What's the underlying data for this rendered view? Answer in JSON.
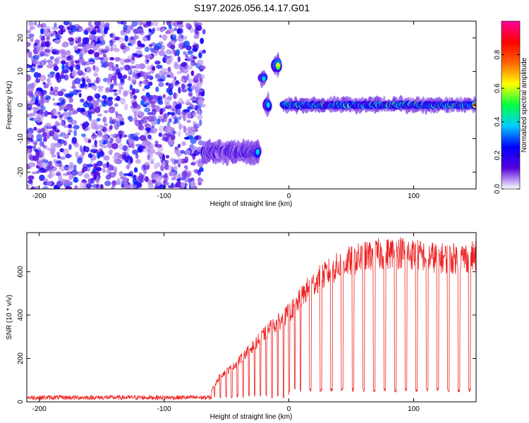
{
  "title": "S197.2026.056.14.17.G01",
  "chart_data": [
    {
      "type": "heatmap",
      "name": "spectrogram",
      "xlabel": "Height of straight line (km)",
      "ylabel": "Frequency (Hz)",
      "xlim": [
        -210,
        150
      ],
      "ylim": [
        -25,
        25
      ],
      "xticks": [
        -200,
        -100,
        0,
        100
      ],
      "yticks": [
        -20,
        -10,
        0,
        10,
        20
      ],
      "colorbar": {
        "label": "Normalized spectral amplitude",
        "range": [
          0,
          1
        ],
        "ticks": [
          "0.0",
          "0.2",
          "0.4",
          "0.6",
          "0.8"
        ],
        "colors": [
          "#ffffff",
          "#5500dd",
          "#0000ff",
          "#00ccff",
          "#00ff44",
          "#ffff00",
          "#ff6600",
          "#ff0000",
          "#ff0099"
        ]
      },
      "noise_region": {
        "x": [
          -210,
          -68
        ],
        "y": [
          -25,
          25
        ],
        "amplitude": [
          0.05,
          0.3
        ]
      },
      "features": [
        {
          "x": [
            -68,
            -25
          ],
          "freq": -14,
          "spread": 3,
          "amplitude": 0.4
        },
        {
          "x": [
            -22,
            -20
          ],
          "freq": 8,
          "spread": 2,
          "amplitude": 0.6
        },
        {
          "x": [
            -18,
            -16
          ],
          "freq": 0,
          "spread": 3,
          "amplitude": 0.6
        },
        {
          "x": [
            -12,
            -8
          ],
          "freq": 12,
          "spread": 3,
          "amplitude": 0.7
        },
        {
          "x": [
            -5,
            150
          ],
          "freq": 0,
          "spread": 1.5,
          "amplitude": 0.9
        }
      ]
    },
    {
      "type": "line",
      "name": "snr",
      "xlabel": "Height of straight line (km)",
      "ylabel": "SNR (10 * v/v)",
      "xlim": [
        -210,
        150
      ],
      "ylim": [
        0,
        780
      ],
      "xticks": [
        -200,
        -100,
        0,
        100
      ],
      "yticks": [
        0,
        200,
        400,
        600
      ],
      "color": "#ee2222",
      "baseline_level": 20,
      "dip_level": 55,
      "envelope": {
        "x": [
          -210,
          -65,
          -55,
          -45,
          -35,
          -25,
          -15,
          -5,
          5,
          15,
          25,
          35,
          45,
          55,
          70,
          90,
          110,
          130,
          150
        ],
        "y": [
          20,
          25,
          120,
          160,
          220,
          280,
          340,
          380,
          440,
          520,
          570,
          610,
          640,
          660,
          680,
          690,
          670,
          660,
          670
        ]
      }
    }
  ]
}
